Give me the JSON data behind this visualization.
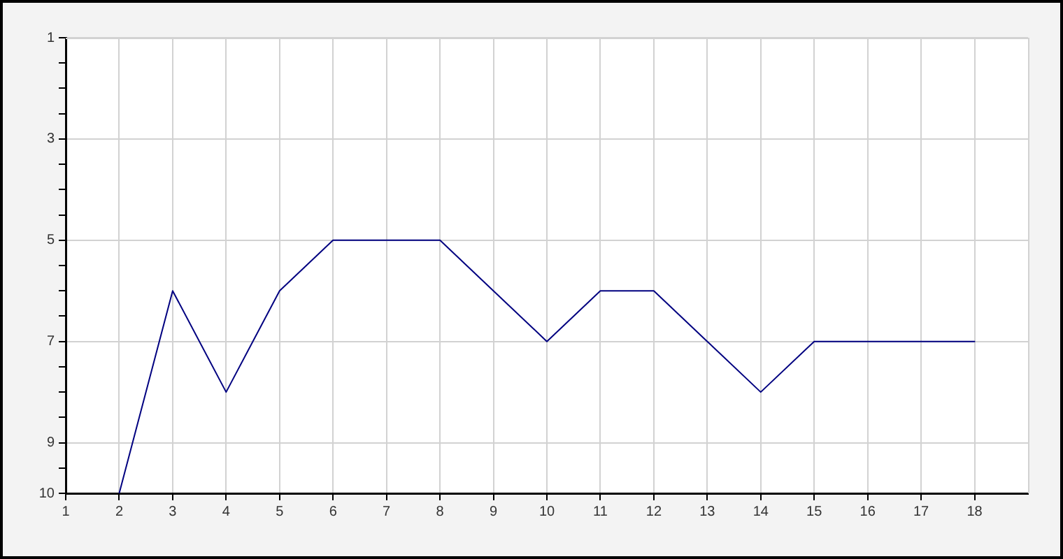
{
  "chart_data": {
    "type": "line",
    "x": [
      2,
      3,
      4,
      5,
      6,
      7,
      8,
      9,
      10,
      11,
      12,
      13,
      14,
      15,
      16,
      17,
      18
    ],
    "values": [
      10,
      6,
      8,
      6,
      5,
      5,
      5,
      6,
      7,
      6,
      6,
      7,
      8,
      7,
      7,
      7,
      7
    ],
    "color": "#000080",
    "xlim": [
      1,
      19
    ],
    "xticks": [
      1,
      2,
      3,
      4,
      5,
      6,
      7,
      8,
      9,
      10,
      11,
      12,
      13,
      14,
      15,
      16,
      17,
      18
    ],
    "ylim": [
      10,
      1
    ],
    "yticks": [
      1,
      {
        "value": 1.5,
        "label": null
      },
      {
        "value": 2,
        "label": null
      },
      {
        "value": 2.5,
        "label": null
      },
      3,
      {
        "value": 3.5,
        "label": null
      },
      {
        "value": 4,
        "label": null
      },
      {
        "value": 4.5,
        "label": null
      },
      5,
      {
        "value": 5.5,
        "label": null
      },
      {
        "value": 6,
        "label": null
      },
      {
        "value": 6.5,
        "label": null
      },
      7,
      {
        "value": 7.5,
        "label": null
      },
      {
        "value": 8,
        "label": null
      },
      {
        "value": 8.5,
        "label": null
      },
      9,
      {
        "value": 9.5,
        "label": null
      },
      10
    ],
    "grid": true,
    "legend": false,
    "marker": "none",
    "line_style": "solid"
  }
}
